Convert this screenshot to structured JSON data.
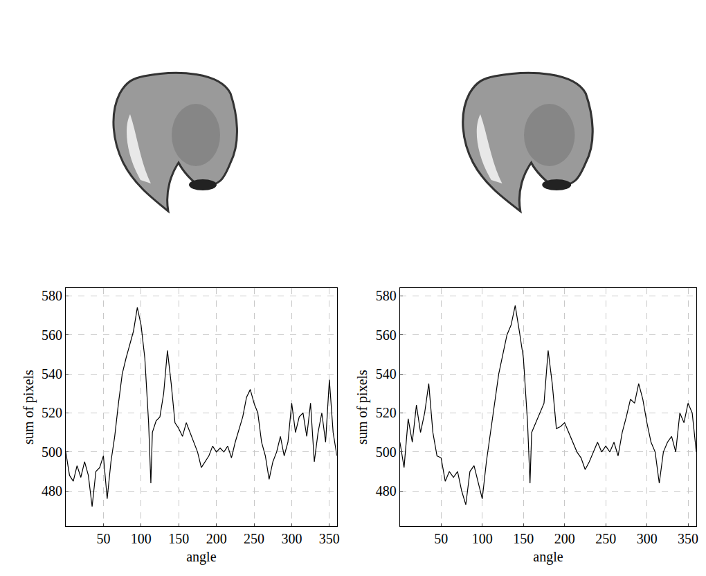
{
  "chart_data": [
    {
      "type": "line",
      "xlabel": "angle",
      "ylabel": "sum of pixels",
      "color": "#000000",
      "grid": true,
      "xlim": [
        0,
        360
      ],
      "ylim": [
        462,
        584
      ],
      "xticks": [
        50,
        100,
        150,
        200,
        250,
        300,
        350
      ],
      "yticks": [
        480,
        500,
        520,
        540,
        560,
        580
      ],
      "x": [
        0,
        5,
        10,
        15,
        20,
        25,
        30,
        35,
        40,
        45,
        50,
        55,
        60,
        65,
        70,
        75,
        80,
        85,
        90,
        95,
        100,
        105,
        110,
        113,
        115,
        120,
        125,
        130,
        135,
        140,
        145,
        150,
        155,
        160,
        165,
        170,
        175,
        180,
        185,
        190,
        195,
        200,
        205,
        210,
        215,
        220,
        225,
        230,
        235,
        240,
        245,
        250,
        255,
        260,
        265,
        270,
        275,
        280,
        285,
        290,
        295,
        300,
        305,
        310,
        315,
        320,
        325,
        330,
        335,
        340,
        345,
        350,
        355,
        360
      ],
      "values": [
        500,
        488,
        485,
        493,
        487,
        495,
        488,
        472,
        490,
        492,
        498,
        476,
        495,
        508,
        525,
        540,
        548,
        555,
        562,
        574,
        565,
        548,
        515,
        484,
        510,
        516,
        518,
        530,
        552,
        535,
        515,
        512,
        508,
        515,
        510,
        505,
        500,
        492,
        495,
        498,
        503,
        500,
        502,
        500,
        503,
        497,
        505,
        512,
        518,
        528,
        532,
        525,
        520,
        505,
        498,
        486,
        495,
        500,
        508,
        498,
        505,
        525,
        510,
        518,
        520,
        508,
        525,
        495,
        510,
        520,
        505,
        537,
        510,
        498
      ]
    },
    {
      "type": "line",
      "xlabel": "angle",
      "ylabel": "sum of pixels",
      "color": "#000000",
      "grid": true,
      "xlim": [
        0,
        360
      ],
      "ylim": [
        462,
        584
      ],
      "xticks": [
        50,
        100,
        150,
        200,
        250,
        300,
        350
      ],
      "yticks": [
        480,
        500,
        520,
        540,
        560,
        580
      ],
      "x": [
        0,
        5,
        10,
        15,
        20,
        25,
        30,
        35,
        40,
        45,
        50,
        55,
        60,
        65,
        70,
        75,
        80,
        85,
        90,
        95,
        100,
        105,
        110,
        115,
        120,
        125,
        130,
        135,
        140,
        145,
        150,
        155,
        158,
        160,
        165,
        170,
        175,
        180,
        185,
        190,
        195,
        200,
        205,
        210,
        215,
        220,
        225,
        230,
        235,
        240,
        245,
        250,
        255,
        260,
        265,
        270,
        275,
        280,
        285,
        290,
        295,
        300,
        305,
        310,
        315,
        320,
        325,
        330,
        335,
        340,
        345,
        350,
        355,
        360
      ],
      "values": [
        505,
        492,
        517,
        505,
        524,
        510,
        520,
        535,
        510,
        498,
        497,
        485,
        490,
        487,
        490,
        480,
        473,
        490,
        493,
        485,
        476,
        495,
        510,
        525,
        540,
        550,
        560,
        565,
        575,
        562,
        548,
        515,
        484,
        510,
        515,
        520,
        525,
        552,
        535,
        512,
        513,
        515,
        510,
        505,
        500,
        497,
        491,
        495,
        500,
        505,
        500,
        503,
        500,
        505,
        498,
        510,
        518,
        527,
        525,
        535,
        527,
        515,
        505,
        500,
        484,
        500,
        505,
        508,
        500,
        520,
        515,
        525,
        520,
        500
      ]
    }
  ]
}
